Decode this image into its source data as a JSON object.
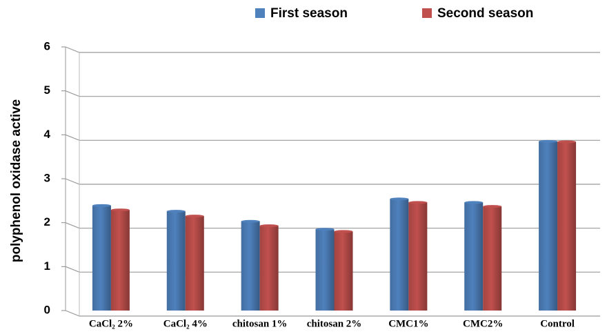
{
  "chart_data": {
    "type": "bar",
    "categories": [
      "CaCl₂ 2%",
      "CaCl₂ 4%",
      "chitosan 1%",
      "chitosan 2%",
      "CMC1%",
      "CMC2%",
      "Control"
    ],
    "series": [
      {
        "name": "First season",
        "color": "#4f81bd",
        "values": [
          2.39,
          2.26,
          2.03,
          1.85,
          2.54,
          2.46,
          3.85
        ]
      },
      {
        "name": "Second season",
        "color": "#c0504d",
        "values": [
          2.29,
          2.15,
          1.93,
          1.8,
          2.46,
          2.37,
          3.84
        ]
      }
    ],
    "ylabel": "polyphenol oxidase active",
    "ylim": [
      0,
      6
    ],
    "yticks": [
      0,
      1,
      2,
      3,
      4,
      5,
      6
    ],
    "grid": true,
    "legend": "top"
  }
}
